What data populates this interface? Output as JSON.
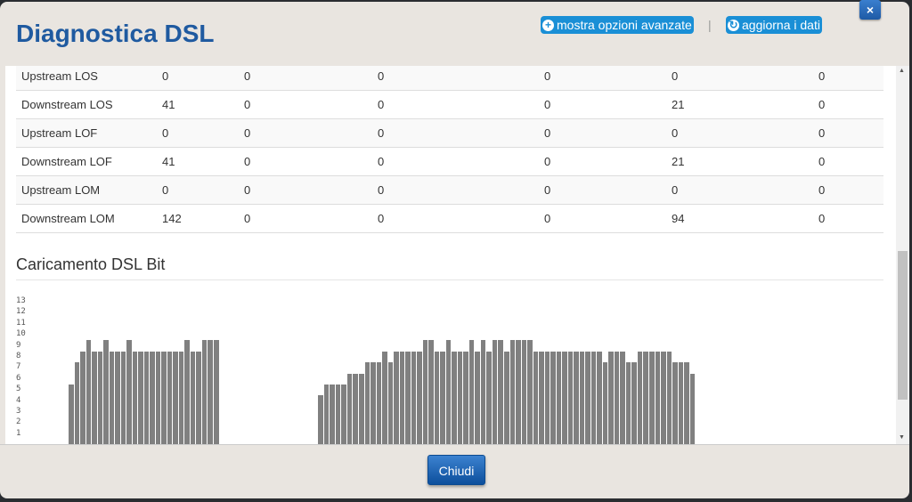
{
  "header": {
    "title": "Diagnostica DSL",
    "advanced_label": "mostra opzioni avanzate",
    "refresh_label": "aggiorna i dati",
    "separator": "|",
    "close_icon": "×"
  },
  "table": {
    "rows": [
      [
        "Upstream LOS",
        "0",
        "0",
        "0",
        "0",
        "0",
        "0"
      ],
      [
        "Downstream LOS",
        "41",
        "0",
        "0",
        "0",
        "21",
        "0"
      ],
      [
        "Upstream LOF",
        "0",
        "0",
        "0",
        "0",
        "0",
        "0"
      ],
      [
        "Downstream LOF",
        "41",
        "0",
        "0",
        "0",
        "21",
        "0"
      ],
      [
        "Upstream LOM",
        "0",
        "0",
        "0",
        "0",
        "0",
        "0"
      ],
      [
        "Downstream LOM",
        "142",
        "0",
        "0",
        "0",
        "94",
        "0"
      ]
    ]
  },
  "bit_section": {
    "title": "Caricamento DSL Bit"
  },
  "chart_data": {
    "type": "bar",
    "title": "",
    "y_ticks": [
      "13",
      "12",
      "11",
      "10",
      "9",
      "8",
      "7",
      "6",
      "5",
      "4",
      "3",
      "2",
      "1"
    ],
    "ylim": [
      0,
      13
    ],
    "bar_color": "#808080",
    "values": [
      5,
      7,
      8,
      9,
      8,
      8,
      9,
      8,
      8,
      8,
      9,
      8,
      8,
      8,
      8,
      8,
      8,
      8,
      8,
      8,
      9,
      8,
      8,
      9,
      9,
      9,
      0,
      0,
      0,
      0,
      0,
      0,
      0,
      0,
      0,
      0,
      0,
      0,
      0,
      0,
      0,
      0,
      0,
      4,
      5,
      5,
      5,
      5,
      6,
      6,
      6,
      7,
      7,
      7,
      8,
      7,
      8,
      8,
      8,
      8,
      8,
      9,
      9,
      8,
      8,
      9,
      8,
      8,
      8,
      9,
      8,
      9,
      8,
      9,
      9,
      8,
      9,
      9,
      9,
      9,
      8,
      8,
      8,
      8,
      8,
      8,
      8,
      8,
      8,
      8,
      8,
      8,
      7,
      8,
      8,
      8,
      7,
      7,
      8,
      8,
      8,
      8,
      8,
      8,
      7,
      7,
      7,
      6
    ]
  },
  "footer": {
    "close_label": "Chiudi"
  }
}
